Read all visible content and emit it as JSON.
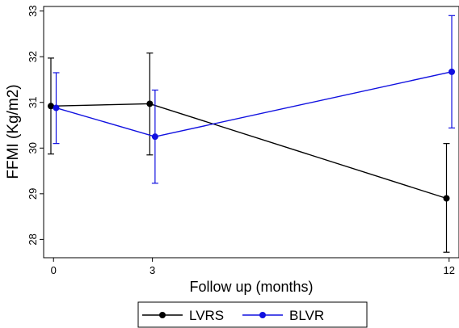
{
  "chart_data": {
    "type": "line",
    "xlabel": "Follow up (months)",
    "ylabel": "FFMI (Kg/m2)",
    "x_ticks": [
      {
        "value": 0,
        "label": "0"
      },
      {
        "value": 3,
        "label": "3"
      },
      {
        "value": 12,
        "label": "12"
      }
    ],
    "y_ticks": [
      {
        "value": 28,
        "label": "28"
      },
      {
        "value": 29,
        "label": "29"
      },
      {
        "value": 30,
        "label": "30"
      },
      {
        "value": 31,
        "label": "31"
      },
      {
        "value": 32,
        "label": "32"
      },
      {
        "value": 33,
        "label": "33"
      }
    ],
    "xlim": [
      -0.3,
      12.3
    ],
    "ylim": [
      27.6,
      33.1
    ],
    "grid": false,
    "legend_position": "bottom",
    "series": [
      {
        "name": "LVRS",
        "color": "#000000",
        "x": [
          -0.08,
          2.92,
          11.92
        ],
        "y": [
          30.92,
          30.97,
          28.9
        ],
        "lower": [
          29.87,
          29.85,
          27.72
        ],
        "upper": [
          31.97,
          32.08,
          30.1
        ]
      },
      {
        "name": "BLVR",
        "color": "#1010e0",
        "x": [
          0.08,
          3.08,
          12.08
        ],
        "y": [
          30.88,
          30.25,
          31.67
        ],
        "lower": [
          30.1,
          29.23,
          30.44
        ],
        "upper": [
          31.65,
          31.27,
          32.9
        ]
      }
    ]
  }
}
